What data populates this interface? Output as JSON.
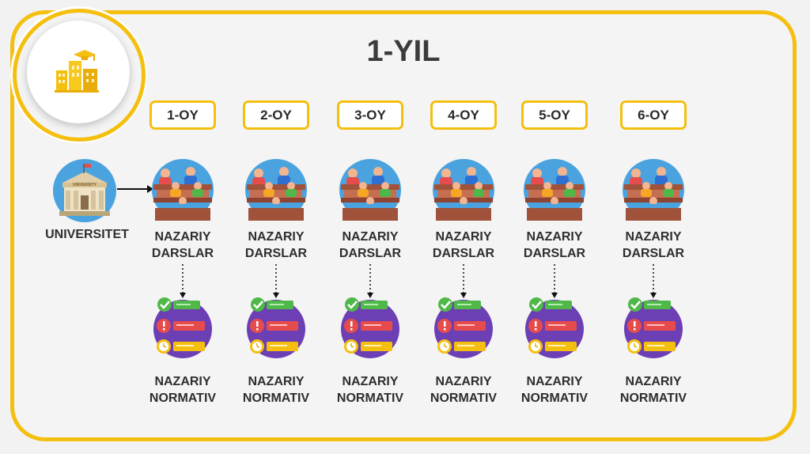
{
  "title": "1-YIL",
  "university": {
    "label": "UNIVERSITET",
    "sign": "UNIVERSITY"
  },
  "lecture_label": {
    "line1": "NAZARIY",
    "line2": "DARSLAR"
  },
  "normative_label": {
    "line1": "NAZARIY",
    "line2": "NORMATIV"
  },
  "months": [
    {
      "label": "1-OY"
    },
    {
      "label": "2-OY"
    },
    {
      "label": "3-OY"
    },
    {
      "label": "4-OY"
    },
    {
      "label": "5-OY"
    },
    {
      "label": "6-OY"
    }
  ],
  "colors": {
    "accent": "#f5bf0f",
    "title": "#3b3b3b",
    "text": "#2e2e2e",
    "lecture_bg": "#4aa3df",
    "normative_bg": "#6c3fb4",
    "check": "#4fb848",
    "alert": "#e74c4c",
    "clock": "#f5bf0f"
  },
  "icons": {
    "logo": "city-buildings-graduation-cap-icon",
    "university": "university-building-icon",
    "lecture": "lecture-audience-icon",
    "normative": "checklist-icon"
  }
}
